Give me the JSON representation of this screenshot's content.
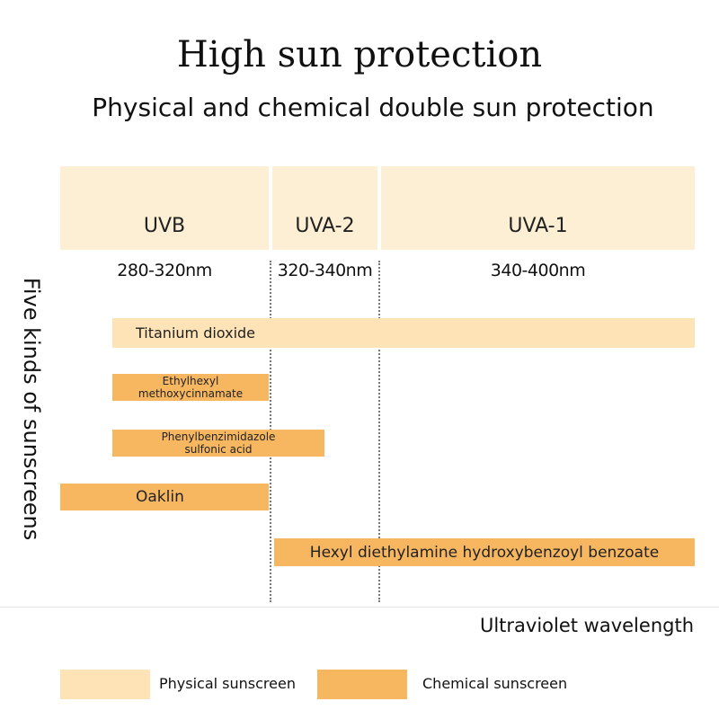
{
  "header": {
    "title": "High sun protection",
    "subtitle": "Physical and chemical double sun protection"
  },
  "bands": [
    {
      "name": "UVB",
      "range": "280-320nm"
    },
    {
      "name": "UVA-2",
      "range": "320-340nm"
    },
    {
      "name": "UVA-1",
      "range": "340-400nm"
    }
  ],
  "y_axis_label": "Five kinds of sunscreens",
  "x_axis_label": "Ultraviolet wavelength",
  "ingredients": [
    "Titanium dioxide",
    "Ethylhexyl methoxycinnamate",
    "Phenylbenzimidazole sulfonic acid",
    "Oaklin",
    "Hexyl diethylamine hydroxybenzoyl benzoate"
  ],
  "legend": [
    "Physical sunscreen",
    "Chemical sunscreen"
  ]
}
